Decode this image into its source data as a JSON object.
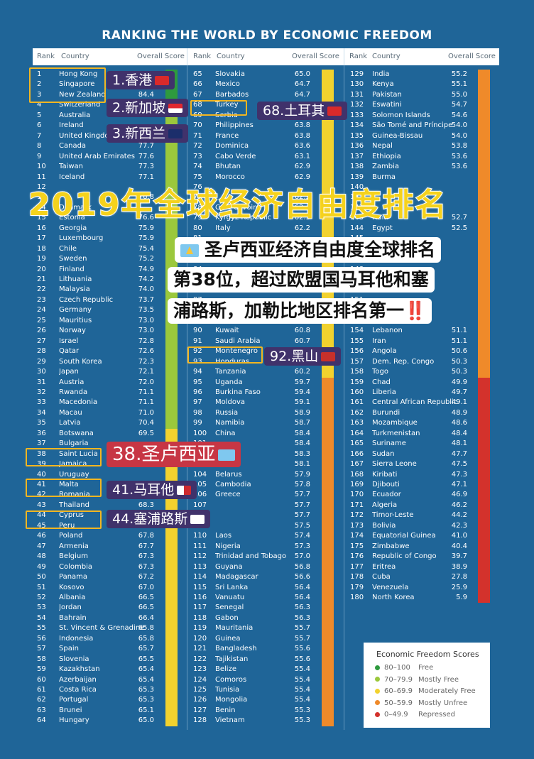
{
  "title": "RANKING THE WORLD BY ECONOMIC FREEDOM",
  "headers": {
    "rank": "Rank",
    "country": "Country",
    "score": "Overall Score"
  },
  "columns": [
    [
      [
        "1",
        "Hong Kong",
        ""
      ],
      [
        "2",
        "Singapore",
        ""
      ],
      [
        "3",
        "New Zealand",
        "84.4"
      ],
      [
        "4",
        "Switzerland",
        ""
      ],
      [
        "5",
        "Australia",
        ""
      ],
      [
        "6",
        "Ireland",
        ""
      ],
      [
        "7",
        "United Kingdom",
        ""
      ],
      [
        "8",
        "Canada",
        "77.7"
      ],
      [
        "9",
        "United Arab Emirates",
        "77.6"
      ],
      [
        "10",
        "Taiwan",
        "77.3"
      ],
      [
        "11",
        "Iceland",
        "77.1"
      ],
      [
        "12",
        "",
        ""
      ],
      [
        "13",
        "",
        "76.8"
      ],
      [
        "14",
        "Denmark",
        ""
      ],
      [
        "15",
        "Estonia",
        "76.6"
      ],
      [
        "16",
        "Georgia",
        "75.9"
      ],
      [
        "17",
        "Luxembourg",
        "75.9"
      ],
      [
        "18",
        "Chile",
        "75.4"
      ],
      [
        "19",
        "Sweden",
        "75.2"
      ],
      [
        "20",
        "Finland",
        "74.9"
      ],
      [
        "21",
        "Lithuania",
        "74.2"
      ],
      [
        "22",
        "Malaysia",
        "74.0"
      ],
      [
        "23",
        "Czech Republic",
        "73.7"
      ],
      [
        "24",
        "Germany",
        "73.5"
      ],
      [
        "25",
        "Mauritius",
        "73.0"
      ],
      [
        "26",
        "Norway",
        "73.0"
      ],
      [
        "27",
        "Israel",
        "72.8"
      ],
      [
        "28",
        "Qatar",
        "72.6"
      ],
      [
        "29",
        "South Korea",
        "72.3"
      ],
      [
        "30",
        "Japan",
        "72.1"
      ],
      [
        "31",
        "Austria",
        "72.0"
      ],
      [
        "32",
        "Rwanda",
        "71.1"
      ],
      [
        "33",
        "Macedonia",
        "71.1"
      ],
      [
        "34",
        "Macau",
        "71.0"
      ],
      [
        "35",
        "Latvia",
        "70.4"
      ],
      [
        "36",
        "Botswana",
        "69.5"
      ],
      [
        "37",
        "Bulgaria",
        ""
      ],
      [
        "38",
        "Saint Lucia",
        ""
      ],
      [
        "39",
        "Jamaica",
        ""
      ],
      [
        "40",
        "Uruguay",
        ""
      ],
      [
        "41",
        "Malta",
        ""
      ],
      [
        "42",
        "Romania",
        ""
      ],
      [
        "43",
        "Thailand",
        "68.3"
      ],
      [
        "44",
        "Cyprus",
        ""
      ],
      [
        "45",
        "Peru",
        ""
      ],
      [
        "46",
        "Poland",
        "67.8"
      ],
      [
        "47",
        "Armenia",
        "67.7"
      ],
      [
        "48",
        "Belgium",
        "67.3"
      ],
      [
        "49",
        "Colombia",
        "67.3"
      ],
      [
        "50",
        "Panama",
        "67.2"
      ],
      [
        "51",
        "Kosovo",
        "67.0"
      ],
      [
        "52",
        "Albania",
        "66.5"
      ],
      [
        "53",
        "Jordan",
        "66.5"
      ],
      [
        "54",
        "Bahrain",
        "66.4"
      ],
      [
        "55",
        "St. Vincent & Grenadines",
        "65.8"
      ],
      [
        "56",
        "Indonesia",
        "65.8"
      ],
      [
        "57",
        "Spain",
        "65.7"
      ],
      [
        "58",
        "Slovenia",
        "65.5"
      ],
      [
        "59",
        "Kazakhstan",
        "65.4"
      ],
      [
        "60",
        "Azerbaijan",
        "65.4"
      ],
      [
        "61",
        "Costa Rica",
        "65.3"
      ],
      [
        "62",
        "Portugal",
        "65.3"
      ],
      [
        "63",
        "Brunei",
        "65.1"
      ],
      [
        "64",
        "Hungary",
        "65.0"
      ]
    ],
    [
      [
        "65",
        "Slovakia",
        "65.0"
      ],
      [
        "66",
        "Mexico",
        "64.7"
      ],
      [
        "67",
        "Barbados",
        "64.7"
      ],
      [
        "68",
        "Turkey",
        ""
      ],
      [
        "69",
        "Serbia",
        ""
      ],
      [
        "70",
        "Philippines",
        "63.8"
      ],
      [
        "71",
        "France",
        "63.8"
      ],
      [
        "72",
        "Dominica",
        "63.6"
      ],
      [
        "73",
        "Cabo Verde",
        "63.1"
      ],
      [
        "74",
        "Bhutan",
        "62.9"
      ],
      [
        "75",
        "Morocco",
        "62.9"
      ],
      [
        "76",
        "",
        ""
      ],
      [
        "77",
        "",
        "62.5"
      ],
      [
        "78",
        "Cote d'Ivoire",
        "62.4"
      ],
      [
        "79",
        "Kyrgyz Republic",
        "62.3"
      ],
      [
        "80",
        "Italy",
        "62.2"
      ],
      [
        "81",
        "",
        ""
      ],
      [
        "82",
        "",
        ""
      ],
      [
        "83",
        "",
        ""
      ],
      [
        "84",
        "",
        ""
      ],
      [
        "85",
        "",
        ""
      ],
      [
        "86",
        "",
        ""
      ],
      [
        "87",
        "",
        ""
      ],
      [
        "88",
        "",
        ""
      ],
      [
        "89",
        "",
        ""
      ],
      [
        "90",
        "Kuwait",
        "60.8"
      ],
      [
        "91",
        "Saudi Arabia",
        "60.7"
      ],
      [
        "92",
        "Montenegro",
        ""
      ],
      [
        "93",
        "Honduras",
        ""
      ],
      [
        "94",
        "Tanzania",
        "60.2"
      ],
      [
        "95",
        "Uganda",
        "59.7"
      ],
      [
        "96",
        "Burkina Faso",
        "59.4"
      ],
      [
        "97",
        "Moldova",
        "59.1"
      ],
      [
        "98",
        "Russia",
        "58.9"
      ],
      [
        "99",
        "Namibia",
        "58.7"
      ],
      [
        "100",
        "China",
        "58.4"
      ],
      [
        "101",
        "",
        "58.4"
      ],
      [
        "102",
        "",
        "58.3"
      ],
      [
        "103",
        "",
        "58.1"
      ],
      [
        "104",
        "Belarus",
        "57.9"
      ],
      [
        "105",
        "Cambodia",
        "57.8"
      ],
      [
        "106",
        "Greece",
        "57.7"
      ],
      [
        "107",
        "",
        "57.7"
      ],
      [
        "108",
        "",
        "57.7"
      ],
      [
        "109",
        "",
        "57.5"
      ],
      [
        "110",
        "Laos",
        "57.4"
      ],
      [
        "111",
        "Nigeria",
        "57.3"
      ],
      [
        "112",
        "Trinidad and Tobago",
        "57.0"
      ],
      [
        "113",
        "Guyana",
        "56.8"
      ],
      [
        "114",
        "Madagascar",
        "56.6"
      ],
      [
        "115",
        "Sri Lanka",
        "56.4"
      ],
      [
        "116",
        "Vanuatu",
        "56.4"
      ],
      [
        "117",
        "Senegal",
        "56.3"
      ],
      [
        "118",
        "Gabon",
        "56.3"
      ],
      [
        "119",
        "Mauritania",
        "55.7"
      ],
      [
        "120",
        "Guinea",
        "55.7"
      ],
      [
        "121",
        "Bangladesh",
        "55.6"
      ],
      [
        "122",
        "Tajikistan",
        "55.6"
      ],
      [
        "123",
        "Belize",
        "55.4"
      ],
      [
        "124",
        "Comoros",
        "55.4"
      ],
      [
        "125",
        "Tunisia",
        "55.4"
      ],
      [
        "126",
        "Mongolia",
        "55.4"
      ],
      [
        "127",
        "Benin",
        "55.3"
      ],
      [
        "128",
        "Vietnam",
        "55.3"
      ]
    ],
    [
      [
        "129",
        "India",
        "55.2"
      ],
      [
        "130",
        "Kenya",
        "55.1"
      ],
      [
        "131",
        "Pakistan",
        "55.0"
      ],
      [
        "132",
        "Eswatini",
        "54.7"
      ],
      [
        "133",
        "Solomon Islands",
        "54.6"
      ],
      [
        "134",
        "São Tomé and Príncipe",
        "54.0"
      ],
      [
        "135",
        "Guinea-Bissau",
        "54.0"
      ],
      [
        "136",
        "Nepal",
        "53.8"
      ],
      [
        "137",
        "Ethiopia",
        "53.6"
      ],
      [
        "138",
        "Zambia",
        "53.6"
      ],
      [
        "139",
        "Burma",
        ""
      ],
      [
        "140",
        "",
        ""
      ],
      [
        "141",
        "",
        ""
      ],
      [
        "142",
        "",
        ""
      ],
      [
        "143",
        "Haiti",
        "52.7"
      ],
      [
        "144",
        "Egypt",
        "52.5"
      ],
      [
        "145",
        "",
        ""
      ],
      [
        "146",
        "",
        ""
      ],
      [
        "147",
        "",
        ""
      ],
      [
        "148",
        "",
        ""
      ],
      [
        "149",
        "",
        ""
      ],
      [
        "150",
        "",
        ""
      ],
      [
        "151",
        "",
        ""
      ],
      [
        "152",
        "",
        ""
      ],
      [
        "153",
        "",
        ""
      ],
      [
        "154",
        "Lebanon",
        "51.1"
      ],
      [
        "155",
        "Iran",
        "51.1"
      ],
      [
        "156",
        "Angola",
        "50.6"
      ],
      [
        "157",
        "Dem. Rep. Congo",
        "50.3"
      ],
      [
        "158",
        "Togo",
        "50.3"
      ],
      [
        "159",
        "Chad",
        "49.9"
      ],
      [
        "160",
        "Liberia",
        "49.7"
      ],
      [
        "161",
        "Central African Republic",
        "49.1"
      ],
      [
        "162",
        "Burundi",
        "48.9"
      ],
      [
        "163",
        "Mozambique",
        "48.6"
      ],
      [
        "164",
        "Turkmenistan",
        "48.4"
      ],
      [
        "165",
        "Suriname",
        "48.1"
      ],
      [
        "166",
        "Sudan",
        "47.7"
      ],
      [
        "167",
        "Sierra Leone",
        "47.5"
      ],
      [
        "168",
        "Kiribati",
        "47.3"
      ],
      [
        "169",
        "Djibouti",
        "47.1"
      ],
      [
        "170",
        "Ecuador",
        "46.9"
      ],
      [
        "171",
        "Algeria",
        "46.2"
      ],
      [
        "172",
        "Timor-Leste",
        "44.2"
      ],
      [
        "173",
        "Bolivia",
        "42.3"
      ],
      [
        "174",
        "Equatorial Guinea",
        "41.0"
      ],
      [
        "175",
        "Zimbabwe",
        "40.4"
      ],
      [
        "176",
        "Republic of Congo",
        "39.7"
      ],
      [
        "177",
        "Eritrea",
        "38.9"
      ],
      [
        "178",
        "Cuba",
        "27.8"
      ],
      [
        "179",
        "Venezuela",
        "25.9"
      ],
      [
        "180",
        "North Korea",
        "5.9"
      ]
    ]
  ],
  "legend": {
    "title": "Economic Freedom Scores",
    "items": [
      {
        "range": "80–100",
        "label": "Free",
        "color": "#2e9a3e"
      },
      {
        "range": "70–79.9",
        "label": "Mostly Free",
        "color": "#9bc83c"
      },
      {
        "range": "60–69.9",
        "label": "Moderately Free",
        "color": "#f2d22e"
      },
      {
        "range": "50–59.9",
        "label": "Mostly Unfree",
        "color": "#ef8a2a"
      },
      {
        "range": "0–49.9",
        "label": "Repressed",
        "color": "#d3322c"
      }
    ]
  },
  "overlay": {
    "big_title": "2019年全球经济自由度排名",
    "labels": {
      "hk": "1.香港",
      "sg": "2.新加坡",
      "nz": "3.新西兰",
      "tr": "68.土耳其",
      "me": "92.黑山",
      "lc": "38.圣卢西亚",
      "mt": "41.马耳他",
      "cy": "44.塞浦路斯"
    },
    "note_lines": [
      "圣卢西亚经济自由度全球排名",
      "第38位，超过欧盟国马耳他和塞",
      "浦路斯，加勒比地区排名第一"
    ],
    "note_bang": "‼️"
  }
}
